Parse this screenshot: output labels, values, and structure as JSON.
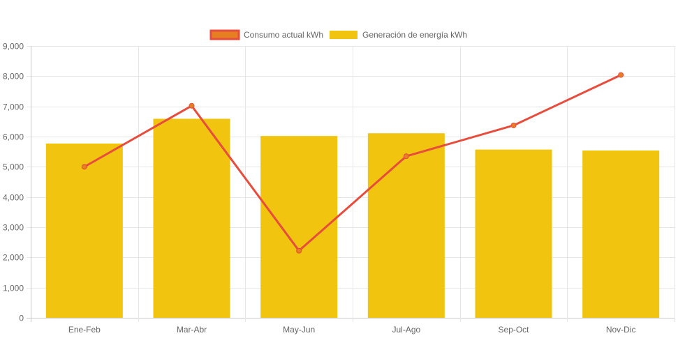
{
  "chart_data": {
    "type": "bar",
    "title": "",
    "xlabel": "",
    "ylabel": "",
    "categories": [
      "Ene-Feb",
      "Mar-Abr",
      "May-Jun",
      "Jul-Ago",
      "Sep-Oct",
      "Nov-Dic"
    ],
    "ylim": [
      0,
      9000
    ],
    "yticks": [
      0,
      1000,
      2000,
      3000,
      4000,
      5000,
      6000,
      7000,
      8000,
      9000
    ],
    "ytick_labels": [
      "0",
      "1,000",
      "2,000",
      "3,000",
      "4,000",
      "5,000",
      "6,000",
      "7,000",
      "8,000",
      "9,000"
    ],
    "grid": true,
    "legend_position": "top-center",
    "series": [
      {
        "name": "Consumo actual kWh",
        "type": "line",
        "color": "#e74c3c",
        "fill_color": "#e67e22",
        "values": [
          5000,
          7020,
          2220,
          5350,
          6370,
          8040
        ]
      },
      {
        "name": "Generación de energía kWh",
        "type": "bar",
        "color": "#f1c40f",
        "values": [
          5770,
          6590,
          6020,
          6110,
          5570,
          5540
        ]
      }
    ]
  }
}
